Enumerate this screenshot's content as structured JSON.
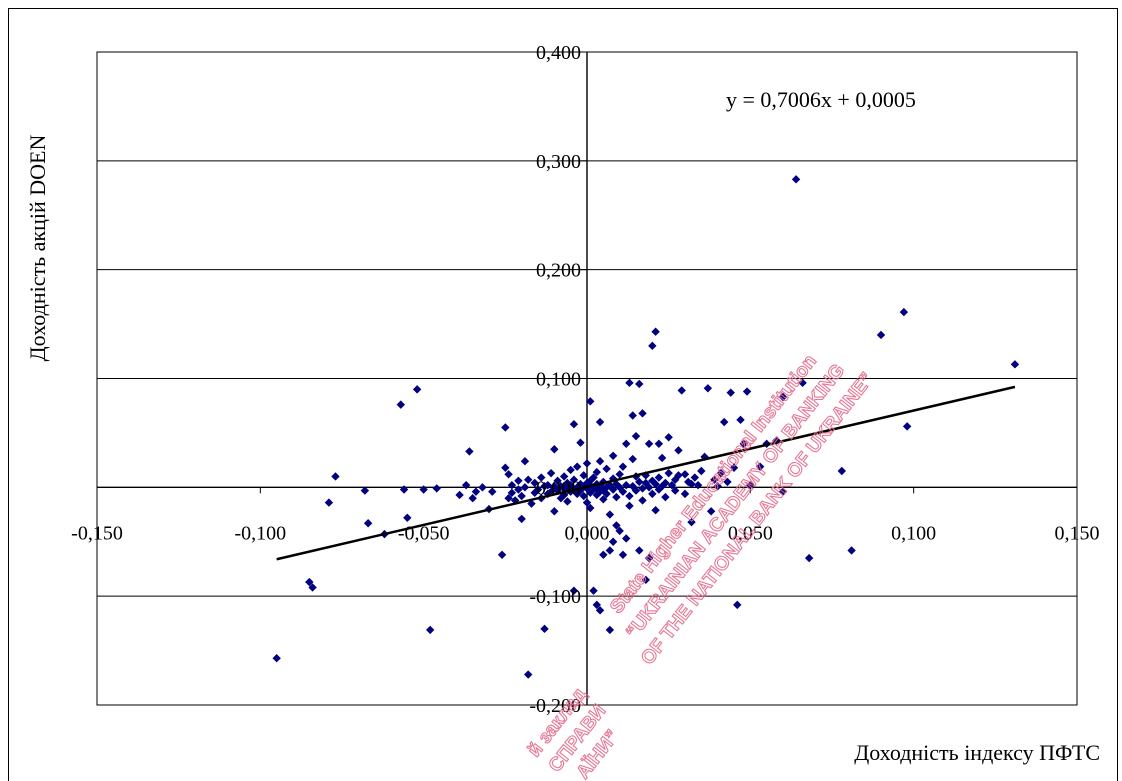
{
  "chart_data": {
    "type": "scatter",
    "xlabel": "Доходність індексу ПФТС",
    "ylabel": "Доходність акцій DOEN",
    "xlim": [
      -0.15,
      0.15
    ],
    "ylim": [
      -0.2,
      0.4
    ],
    "x_ticks": [
      "-0,150",
      "-0,100",
      "-0,050",
      "0,000",
      "0,050",
      "0,100",
      "0,150"
    ],
    "y_ticks": [
      "0,400",
      "0,300",
      "0,200",
      "0,100",
      "0,000",
      "-0,100",
      "-0,200"
    ],
    "grid": "horizontal",
    "colors": {
      "points": "#000080",
      "trendline": "#000000",
      "watermark": "#e46a8a"
    },
    "trendline": {
      "slope": 0.7006,
      "intercept": 0.0005,
      "x_range": [
        -0.095,
        0.131
      ],
      "label": "y = 0,7006x + 0,0005"
    },
    "points": [
      [
        -0.095,
        -0.157
      ],
      [
        -0.085,
        -0.087
      ],
      [
        -0.084,
        -0.092
      ],
      [
        -0.079,
        -0.014
      ],
      [
        -0.077,
        0.01
      ],
      [
        -0.068,
        -0.003
      ],
      [
        -0.067,
        -0.033
      ],
      [
        -0.062,
        -0.043
      ],
      [
        -0.057,
        0.076
      ],
      [
        -0.056,
        -0.002
      ],
      [
        -0.055,
        -0.028
      ],
      [
        -0.052,
        0.09
      ],
      [
        -0.05,
        -0.002
      ],
      [
        -0.048,
        -0.131
      ],
      [
        -0.046,
        -0.001
      ],
      [
        -0.039,
        -0.007
      ],
      [
        -0.037,
        0.002
      ],
      [
        -0.036,
        0.033
      ],
      [
        -0.035,
        -0.01
      ],
      [
        -0.034,
        -0.004
      ],
      [
        -0.032,
        0.0
      ],
      [
        -0.03,
        -0.02
      ],
      [
        -0.029,
        -0.004
      ],
      [
        -0.026,
        -0.062
      ],
      [
        -0.025,
        0.055
      ],
      [
        -0.025,
        0.018
      ],
      [
        -0.024,
        0.012
      ],
      [
        -0.024,
        -0.01
      ],
      [
        -0.023,
        0.002
      ],
      [
        -0.023,
        -0.005
      ],
      [
        -0.022,
        -0.012
      ],
      [
        -0.021,
        0.006
      ],
      [
        -0.021,
        -0.002
      ],
      [
        -0.02,
        -0.008
      ],
      [
        -0.02,
        -0.029
      ],
      [
        -0.019,
        0.024
      ],
      [
        -0.019,
        0.0
      ],
      [
        -0.018,
        -0.172
      ],
      [
        -0.018,
        0.007
      ],
      [
        -0.017,
        -0.015
      ],
      [
        -0.016,
        0.004
      ],
      [
        -0.016,
        -0.005
      ],
      [
        -0.015,
        -0.002
      ],
      [
        -0.014,
        0.009
      ],
      [
        -0.014,
        -0.01
      ],
      [
        -0.013,
        -0.13
      ],
      [
        -0.013,
        0.001
      ],
      [
        -0.012,
        0.002
      ],
      [
        -0.012,
        -0.006
      ],
      [
        -0.011,
        0.013
      ],
      [
        -0.011,
        -0.004
      ],
      [
        -0.01,
        0.035
      ],
      [
        -0.01,
        0.001
      ],
      [
        -0.01,
        -0.022
      ],
      [
        -0.009,
        -0.003
      ],
      [
        -0.009,
        0.006
      ],
      [
        -0.008,
        0.001
      ],
      [
        -0.008,
        -0.01
      ],
      [
        -0.007,
        0.01
      ],
      [
        -0.007,
        0.0
      ],
      [
        -0.007,
        -0.007
      ],
      [
        -0.006,
        0.004
      ],
      [
        -0.006,
        -0.001
      ],
      [
        -0.006,
        -0.013
      ],
      [
        -0.005,
        0.016
      ],
      [
        -0.005,
        0.002
      ],
      [
        -0.005,
        -0.004
      ],
      [
        -0.004,
        0.058
      ],
      [
        -0.004,
        0.007
      ],
      [
        -0.004,
        -0.002
      ],
      [
        -0.004,
        -0.095
      ],
      [
        -0.003,
        0.0
      ],
      [
        -0.003,
        -0.006
      ],
      [
        -0.003,
        0.019
      ],
      [
        -0.002,
        0.003
      ],
      [
        -0.002,
        -0.003
      ],
      [
        -0.002,
        0.041
      ],
      [
        -0.001,
        0.001
      ],
      [
        -0.001,
        -0.008
      ],
      [
        -0.001,
        0.011
      ],
      [
        0.0,
        -0.001
      ],
      [
        0.0,
        0.004
      ],
      [
        0.0,
        -0.014
      ],
      [
        0.0,
        0.022
      ],
      [
        0.001,
        0.002
      ],
      [
        0.001,
        -0.004
      ],
      [
        0.001,
        0.006
      ],
      [
        0.001,
        -0.019
      ],
      [
        0.001,
        -0.005
      ],
      [
        0.001,
        0.079
      ],
      [
        0.002,
        0.0
      ],
      [
        0.002,
        -0.095
      ],
      [
        0.002,
        -0.002
      ],
      [
        0.002,
        0.009
      ],
      [
        0.003,
        0.003
      ],
      [
        0.003,
        -0.007
      ],
      [
        0.003,
        0.014
      ],
      [
        0.003,
        -0.108
      ],
      [
        0.003,
        -0.001
      ],
      [
        0.004,
        0.001
      ],
      [
        0.004,
        -0.004
      ],
      [
        0.004,
        0.024
      ],
      [
        0.004,
        -0.113
      ],
      [
        0.004,
        0.06
      ],
      [
        0.005,
        0.005
      ],
      [
        0.005,
        -0.003
      ],
      [
        0.005,
        -0.011
      ],
      [
        0.005,
        -0.062
      ],
      [
        0.006,
        0.0
      ],
      [
        0.006,
        0.017
      ],
      [
        0.006,
        -0.006
      ],
      [
        0.007,
        -0.025
      ],
      [
        0.007,
        0.002
      ],
      [
        0.007,
        -0.058
      ],
      [
        0.007,
        -0.131
      ],
      [
        0.008,
        0.008
      ],
      [
        0.008,
        -0.002
      ],
      [
        0.008,
        0.029
      ],
      [
        0.008,
        -0.05
      ],
      [
        0.009,
        0.003
      ],
      [
        0.009,
        -0.009
      ],
      [
        0.009,
        -0.035
      ],
      [
        0.01,
        0.0
      ],
      [
        0.01,
        0.012
      ],
      [
        0.01,
        -0.04
      ],
      [
        0.011,
        -0.004
      ],
      [
        0.011,
        0.019
      ],
      [
        0.011,
        -0.062
      ],
      [
        0.012,
        0.002
      ],
      [
        0.012,
        0.04
      ],
      [
        0.012,
        -0.047
      ],
      [
        0.013,
        -0.008
      ],
      [
        0.013,
        0.096
      ],
      [
        0.013,
        -0.017
      ],
      [
        0.014,
        0.001
      ],
      [
        0.014,
        0.026
      ],
      [
        0.014,
        0.066
      ],
      [
        0.015,
        -0.003
      ],
      [
        0.015,
        0.01
      ],
      [
        0.015,
        0.047
      ],
      [
        0.016,
        0.005
      ],
      [
        0.016,
        -0.058
      ],
      [
        0.016,
        0.095
      ],
      [
        0.017,
        -0.001
      ],
      [
        0.017,
        -0.012
      ],
      [
        0.017,
        0.068
      ],
      [
        0.018,
        0.004
      ],
      [
        0.018,
        0.011
      ],
      [
        0.018,
        -0.085
      ],
      [
        0.019,
        0.0
      ],
      [
        0.019,
        0.04
      ],
      [
        0.019,
        -0.065
      ],
      [
        0.02,
        0.006
      ],
      [
        0.02,
        -0.006
      ],
      [
        0.02,
        0.13
      ],
      [
        0.021,
        0.003
      ],
      [
        0.021,
        -0.021
      ],
      [
        0.021,
        0.143
      ],
      [
        0.022,
        0.009
      ],
      [
        0.022,
        -0.002
      ],
      [
        0.022,
        0.04
      ],
      [
        0.023,
        0.001
      ],
      [
        0.023,
        0.027
      ],
      [
        0.024,
        0.004
      ],
      [
        0.024,
        -0.009
      ],
      [
        0.025,
        0.013
      ],
      [
        0.025,
        0.046
      ],
      [
        0.026,
        0.002
      ],
      [
        0.027,
        0.007
      ],
      [
        0.027,
        -0.003
      ],
      [
        0.028,
        0.034
      ],
      [
        0.028,
        0.011
      ],
      [
        0.029,
        0.089
      ],
      [
        0.03,
        0.012
      ],
      [
        0.03,
        -0.006
      ],
      [
        0.031,
        0.005
      ],
      [
        0.032,
        0.003
      ],
      [
        0.032,
        -0.032
      ],
      [
        0.033,
        0.009
      ],
      [
        0.034,
        0.002
      ],
      [
        0.035,
        0.015
      ],
      [
        0.036,
        0.028
      ],
      [
        0.037,
        0.091
      ],
      [
        0.038,
        -0.022
      ],
      [
        0.039,
        0.007
      ],
      [
        0.04,
        0.001
      ],
      [
        0.041,
        0.013
      ],
      [
        0.042,
        0.06
      ],
      [
        0.043,
        0.005
      ],
      [
        0.044,
        0.087
      ],
      [
        0.045,
        0.018
      ],
      [
        0.046,
        -0.108
      ],
      [
        0.047,
        0.062
      ],
      [
        0.048,
        0.04
      ],
      [
        0.049,
        0.088
      ],
      [
        0.05,
        0.002
      ],
      [
        0.053,
        0.019
      ],
      [
        0.055,
        0.04
      ],
      [
        0.058,
        0.043
      ],
      [
        0.06,
        0.083
      ],
      [
        0.06,
        -0.004
      ],
      [
        0.064,
        0.283
      ],
      [
        0.066,
        0.096
      ],
      [
        0.068,
        -0.065
      ],
      [
        0.078,
        0.015
      ],
      [
        0.081,
        -0.058
      ],
      [
        0.09,
        0.14
      ],
      [
        0.097,
        0.161
      ],
      [
        0.098,
        0.056
      ],
      [
        0.131,
        0.113
      ]
    ]
  },
  "watermark": {
    "lines_a": [
      "State Higher Educational Institution",
      "“UKRAINIAN ACADEMY OF BANKING",
      "OF THE NATIONAL BANK OF UKRAINE”"
    ],
    "lines_b": [
      "й заклад",
      "СПРАВИ",
      "АЇНИ”"
    ]
  }
}
